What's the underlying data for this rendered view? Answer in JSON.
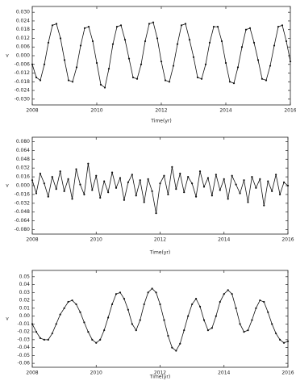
{
  "chart_data": [
    {
      "type": "line",
      "xlabel": "Time(yr)",
      "ylabel": "v",
      "color": "#111111",
      "xlim": [
        2008,
        2016
      ],
      "xticks": [
        2008,
        2010,
        2012,
        2014,
        2016
      ],
      "ylim": [
        -0.034,
        0.034
      ],
      "yticks": [
        {
          "value": 0.03,
          "label": "0.030"
        },
        {
          "value": 0.024,
          "label": "0.024"
        },
        {
          "value": 0.018,
          "label": "0.018"
        },
        {
          "value": 0.012,
          "label": "0.012"
        },
        {
          "value": 0.006,
          "label": "0.006"
        },
        {
          "value": 0,
          "label": "0.000"
        },
        {
          "value": -0.006,
          "label": "-0.006"
        },
        {
          "value": -0.012,
          "label": "-0.012"
        },
        {
          "value": -0.018,
          "label": "-0.018"
        },
        {
          "value": -0.024,
          "label": "-0.024"
        },
        {
          "value": -0.03,
          "label": "-0.030"
        }
      ],
      "x": [
        2008,
        2008.125,
        2008.25,
        2008.375,
        2008.5,
        2008.625,
        2008.75,
        2008.875,
        2009,
        2009.125,
        2009.25,
        2009.375,
        2009.5,
        2009.625,
        2009.75,
        2009.875,
        2010,
        2010.125,
        2010.25,
        2010.375,
        2010.5,
        2010.625,
        2010.75,
        2010.875,
        2011,
        2011.125,
        2011.25,
        2011.375,
        2011.5,
        2011.625,
        2011.75,
        2011.875,
        2012,
        2012.125,
        2012.25,
        2012.375,
        2012.5,
        2012.625,
        2012.75,
        2012.875,
        2013,
        2013.125,
        2013.25,
        2013.375,
        2013.5,
        2013.625,
        2013.75,
        2013.875,
        2014,
        2014.125,
        2014.25,
        2014.375,
        2014.5,
        2014.625,
        2014.75,
        2014.875,
        2015,
        2015.125,
        2015.25,
        2015.375,
        2015.5,
        2015.625,
        2015.75,
        2015.875,
        2016
      ],
      "values": [
        -0.006,
        -0.015,
        -0.017,
        -0.006,
        0.009,
        0.021,
        0.022,
        0.012,
        -0.003,
        -0.017,
        -0.018,
        -0.008,
        0.007,
        0.019,
        0.02,
        0.01,
        -0.005,
        -0.02,
        -0.022,
        -0.009,
        0.008,
        0.02,
        0.021,
        0.011,
        -0.002,
        -0.015,
        -0.016,
        -0.006,
        0.01,
        0.022,
        0.023,
        0.012,
        -0.004,
        -0.017,
        -0.018,
        -0.007,
        0.008,
        0.021,
        0.022,
        0.011,
        -0.001,
        -0.015,
        -0.016,
        -0.006,
        0.009,
        0.02,
        0.02,
        0.01,
        -0.005,
        -0.018,
        -0.019,
        -0.008,
        0.006,
        0.018,
        0.019,
        0.009,
        -0.003,
        -0.016,
        -0.017,
        -0.007,
        0.007,
        0.02,
        0.021,
        0.01,
        -0.004
      ]
    },
    {
      "type": "line",
      "xlabel": "Time(yr)",
      "ylabel": "v",
      "color": "#111111",
      "xlim": [
        2008,
        2016
      ],
      "xticks": [
        2008,
        2010,
        2012,
        2014,
        2016
      ],
      "ylim": [
        -0.088,
        0.088
      ],
      "yticks": [
        {
          "value": 0.08,
          "label": "0.080"
        },
        {
          "value": 0.064,
          "label": "0.064"
        },
        {
          "value": 0.048,
          "label": "0.048"
        },
        {
          "value": 0.032,
          "label": "0.032"
        },
        {
          "value": 0.016,
          "label": "0.016"
        },
        {
          "value": 0,
          "label": "0.000"
        },
        {
          "value": -0.016,
          "label": "-0.016"
        },
        {
          "value": -0.032,
          "label": "-0.032"
        },
        {
          "value": -0.048,
          "label": "-0.048"
        },
        {
          "value": -0.064,
          "label": "-0.064"
        },
        {
          "value": -0.08,
          "label": "-0.080"
        }
      ],
      "x": [
        2008,
        2008.125,
        2008.25,
        2008.375,
        2008.5,
        2008.625,
        2008.75,
        2008.875,
        2009,
        2009.125,
        2009.25,
        2009.375,
        2009.5,
        2009.625,
        2009.75,
        2009.875,
        2010,
        2010.125,
        2010.25,
        2010.375,
        2010.5,
        2010.625,
        2010.75,
        2010.875,
        2011,
        2011.125,
        2011.25,
        2011.375,
        2011.5,
        2011.625,
        2011.75,
        2011.875,
        2012,
        2012.125,
        2012.25,
        2012.375,
        2012.5,
        2012.625,
        2012.75,
        2012.875,
        2013,
        2013.125,
        2013.25,
        2013.375,
        2013.5,
        2013.625,
        2013.75,
        2013.875,
        2014,
        2014.125,
        2014.25,
        2014.375,
        2014.5,
        2014.625,
        2014.75,
        2014.875,
        2015,
        2015.125,
        2015.25,
        2015.375,
        2015.5,
        2015.625,
        2015.75,
        2015.875,
        2016
      ],
      "values": [
        0.01,
        -0.014,
        0.022,
        0.004,
        -0.02,
        0.016,
        -0.006,
        0.026,
        -0.01,
        0.012,
        -0.024,
        0.03,
        0.002,
        -0.016,
        0.04,
        -0.008,
        0.018,
        -0.022,
        0.008,
        -0.012,
        0.024,
        -0.004,
        0.014,
        -0.026,
        0.006,
        0.02,
        -0.018,
        0.01,
        -0.03,
        0.012,
        -0.01,
        -0.05,
        0.004,
        0.018,
        -0.016,
        0.034,
        -0.006,
        0.022,
        -0.012,
        0.016,
        0.004,
        -0.02,
        0.026,
        -0.002,
        0.014,
        -0.018,
        0.02,
        -0.008,
        0.012,
        -0.024,
        0.018,
        0.002,
        -0.014,
        0.01,
        -0.03,
        0.016,
        -0.004,
        0.012,
        -0.036,
        0.008,
        -0.01,
        0.02,
        -0.016,
        0.006,
        0.0
      ]
    },
    {
      "type": "line",
      "xlabel": "Time(yr)",
      "ylabel": "v",
      "color": "#111111",
      "xlim": [
        2008,
        2016
      ],
      "xticks": [
        2008,
        2010,
        2012,
        2014,
        2016
      ],
      "ylim": [
        -0.065,
        0.058
      ],
      "yticks": [
        {
          "value": 0.05,
          "label": "0.05"
        },
        {
          "value": 0.04,
          "label": "0.04"
        },
        {
          "value": 0.03,
          "label": "0.03"
        },
        {
          "value": 0.02,
          "label": "0.02"
        },
        {
          "value": 0.01,
          "label": "0.01"
        },
        {
          "value": 0,
          "label": "0.00"
        },
        {
          "value": -0.01,
          "label": "-0.01"
        },
        {
          "value": -0.02,
          "label": "-0.02"
        },
        {
          "value": -0.03,
          "label": "-0.03"
        },
        {
          "value": -0.04,
          "label": "-0.04"
        },
        {
          "value": -0.05,
          "label": "-0.05"
        },
        {
          "value": -0.06,
          "label": "-0.06"
        }
      ],
      "x": [
        2008,
        2008.125,
        2008.25,
        2008.375,
        2008.5,
        2008.625,
        2008.75,
        2008.875,
        2009,
        2009.125,
        2009.25,
        2009.375,
        2009.5,
        2009.625,
        2009.75,
        2009.875,
        2010,
        2010.125,
        2010.25,
        2010.375,
        2010.5,
        2010.625,
        2010.75,
        2010.875,
        2011,
        2011.125,
        2011.25,
        2011.375,
        2011.5,
        2011.625,
        2011.75,
        2011.875,
        2012,
        2012.125,
        2012.25,
        2012.375,
        2012.5,
        2012.625,
        2012.75,
        2012.875,
        2013,
        2013.125,
        2013.25,
        2013.375,
        2013.5,
        2013.625,
        2013.75,
        2013.875,
        2014,
        2014.125,
        2014.25,
        2014.375,
        2014.5,
        2014.625,
        2014.75,
        2014.875,
        2015,
        2015.125,
        2015.25,
        2015.375,
        2015.5,
        2015.625,
        2015.75,
        2015.875,
        2016
      ],
      "values": [
        -0.01,
        -0.02,
        -0.028,
        -0.03,
        -0.03,
        -0.022,
        -0.01,
        0.002,
        0.01,
        0.018,
        0.02,
        0.015,
        0.005,
        -0.008,
        -0.02,
        -0.03,
        -0.034,
        -0.03,
        -0.018,
        -0.002,
        0.015,
        0.028,
        0.03,
        0.022,
        0.008,
        -0.01,
        -0.018,
        -0.005,
        0.015,
        0.03,
        0.035,
        0.03,
        0.015,
        -0.005,
        -0.025,
        -0.04,
        -0.044,
        -0.035,
        -0.018,
        0.0,
        0.015,
        0.022,
        0.012,
        -0.005,
        -0.018,
        -0.015,
        0.0,
        0.018,
        0.028,
        0.033,
        0.028,
        0.01,
        -0.01,
        -0.02,
        -0.018,
        -0.005,
        0.01,
        0.02,
        0.018,
        0.005,
        -0.01,
        -0.022,
        -0.03,
        -0.034,
        -0.032
      ]
    }
  ]
}
